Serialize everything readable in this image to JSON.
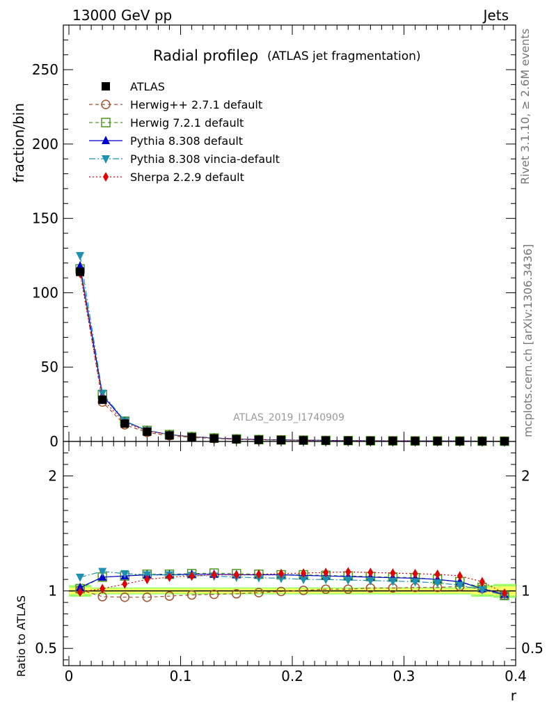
{
  "header": {
    "left": "13000 GeV pp",
    "right": "Jets",
    "title": "Radial profileρ",
    "subtitle": "(ATLAS jet fragmentation)",
    "analysis_id": "ATLAS_2019_I1740909"
  },
  "side_text": {
    "rivet": "Rivet 3.1.10, ≥ 2.6M events",
    "mcplots": "mcplots.cern.ch [arXiv:1306.3436]"
  },
  "chart_data": [
    {
      "type": "scatter",
      "ylabel": "fraction/bin",
      "xlim": [
        -0.005,
        0.4
      ],
      "ylim": [
        0,
        280
      ],
      "yticks": [
        "0",
        "50",
        "100",
        "150",
        "200",
        "250"
      ],
      "x": [
        0.01,
        0.03,
        0.05,
        0.07,
        0.09,
        0.11,
        0.13,
        0.15,
        0.17,
        0.19,
        0.21,
        0.23,
        0.25,
        0.27,
        0.29,
        0.31,
        0.33,
        0.35,
        0.37,
        0.39
      ],
      "series": [
        {
          "name": "ATLAS",
          "color": "#000000",
          "marker": "square",
          "values": [
            114,
            28,
            12,
            6.5,
            4.0,
            2.8,
            2.0,
            1.5,
            1.1,
            0.9,
            0.75,
            0.6,
            0.5,
            0.42,
            0.36,
            0.31,
            0.27,
            0.24,
            0.21,
            0.18
          ]
        },
        {
          "name": "Herwig++ 2.7.1 default",
          "color": "#a0522d",
          "marker": "circle-open",
          "dash": "5,4",
          "values": [
            115,
            26.5,
            11.2,
            6.1,
            3.8,
            2.7,
            1.95,
            1.45,
            1.08,
            0.89,
            0.75,
            0.61,
            0.51,
            0.43,
            0.37,
            0.32,
            0.28,
            0.24,
            0.21,
            0.17
          ]
        },
        {
          "name": "Herwig 7.2.1 default",
          "color": "#4a9a1f",
          "marker": "square-open",
          "dash": "5,4",
          "values": [
            116,
            31.5,
            13.6,
            7.4,
            4.6,
            3.2,
            2.3,
            1.7,
            1.26,
            1.03,
            0.86,
            0.69,
            0.57,
            0.48,
            0.41,
            0.35,
            0.3,
            0.26,
            0.21,
            0.17
          ]
        },
        {
          "name": "Pythia 8.308 default",
          "color": "#0000cc",
          "marker": "triangle-up",
          "dash": "",
          "values": [
            118,
            31,
            13.5,
            7.4,
            4.6,
            3.2,
            2.3,
            1.7,
            1.26,
            1.03,
            0.85,
            0.68,
            0.56,
            0.47,
            0.4,
            0.34,
            0.3,
            0.26,
            0.21,
            0.17
          ]
        },
        {
          "name": "Pythia 8.308 vincia-default",
          "color": "#1e90b0",
          "marker": "triangle-down",
          "dash": "9,3,2,3",
          "values": [
            125,
            32.5,
            13.8,
            7.4,
            4.6,
            3.2,
            2.28,
            1.68,
            1.24,
            1.0,
            0.83,
            0.66,
            0.55,
            0.46,
            0.39,
            0.34,
            0.29,
            0.25,
            0.21,
            0.17
          ]
        },
        {
          "name": "Sherpa 2.2.9 default",
          "color": "#e00000",
          "marker": "diamond",
          "dash": "2,3",
          "values": [
            113,
            28.5,
            12.5,
            7.0,
            4.5,
            3.1,
            2.3,
            1.7,
            1.26,
            1.04,
            0.87,
            0.7,
            0.58,
            0.48,
            0.41,
            0.35,
            0.31,
            0.27,
            0.22,
            0.18
          ]
        }
      ]
    },
    {
      "type": "scatter",
      "xlabel": "r",
      "ylabel": "Ratio to ATLAS",
      "xlim": [
        -0.005,
        0.4
      ],
      "ylim": [
        0.35,
        2.3
      ],
      "xticks": [
        "0",
        "0.1",
        "0.2",
        "0.3",
        "0.4"
      ],
      "yticks": [
        "0.5",
        "1",
        "2"
      ],
      "x": [
        0.01,
        0.03,
        0.05,
        0.07,
        0.09,
        0.11,
        0.13,
        0.15,
        0.17,
        0.19,
        0.21,
        0.23,
        0.25,
        0.27,
        0.29,
        0.31,
        0.33,
        0.35,
        0.37,
        0.39
      ],
      "band": {
        "inner_color": "#ffff66",
        "outer_color": "#99ff66",
        "inner_half_width": [
          0.03,
          0.02,
          0.02,
          0.02,
          0.02,
          0.02,
          0.02,
          0.02,
          0.02,
          0.02,
          0.02,
          0.02,
          0.02,
          0.02,
          0.02,
          0.02,
          0.02,
          0.02,
          0.03,
          0.04
        ],
        "outer_half_width": [
          0.05,
          0.03,
          0.03,
          0.03,
          0.03,
          0.03,
          0.03,
          0.03,
          0.03,
          0.03,
          0.03,
          0.03,
          0.03,
          0.03,
          0.03,
          0.03,
          0.03,
          0.03,
          0.05,
          0.06
        ]
      },
      "series": [
        {
          "name": "ATLAS",
          "color": "#000000",
          "values": [
            1,
            1,
            1,
            1,
            1,
            1,
            1,
            1,
            1,
            1,
            1,
            1,
            1,
            1,
            1,
            1,
            1,
            1,
            1,
            1
          ]
        },
        {
          "name": "Herwig++ 2.7.1 default",
          "color": "#a0522d",
          "values": [
            1.01,
            0.95,
            0.945,
            0.945,
            0.955,
            0.965,
            0.97,
            0.975,
            0.985,
            0.995,
            1.005,
            1.015,
            1.015,
            1.025,
            1.025,
            1.03,
            1.03,
            1.04,
            1.02,
            0.96
          ]
        },
        {
          "name": "Herwig 7.2.1 default",
          "color": "#4a9a1f",
          "values": [
            1.02,
            1.12,
            1.13,
            1.145,
            1.145,
            1.15,
            1.155,
            1.15,
            1.145,
            1.14,
            1.14,
            1.135,
            1.13,
            1.125,
            1.12,
            1.115,
            1.1,
            1.08,
            1.03,
            0.96
          ]
        },
        {
          "name": "Pythia 8.308 default",
          "color": "#0000cc",
          "values": [
            1.03,
            1.12,
            1.13,
            1.14,
            1.14,
            1.145,
            1.145,
            1.14,
            1.14,
            1.14,
            1.135,
            1.13,
            1.125,
            1.12,
            1.115,
            1.11,
            1.1,
            1.08,
            1.02,
            0.97
          ]
        },
        {
          "name": "Pythia 8.308 vincia-default",
          "color": "#1e90b0",
          "values": [
            1.12,
            1.17,
            1.15,
            1.14,
            1.14,
            1.135,
            1.13,
            1.12,
            1.115,
            1.11,
            1.1,
            1.1,
            1.095,
            1.09,
            1.085,
            1.08,
            1.07,
            1.05,
            1.01,
            0.96
          ]
        },
        {
          "name": "Sherpa 2.2.9 default",
          "color": "#e00000",
          "values": [
            0.99,
            1.02,
            1.06,
            1.1,
            1.12,
            1.13,
            1.14,
            1.14,
            1.145,
            1.15,
            1.155,
            1.16,
            1.165,
            1.16,
            1.155,
            1.15,
            1.145,
            1.13,
            1.08,
            0.98
          ]
        }
      ]
    }
  ]
}
